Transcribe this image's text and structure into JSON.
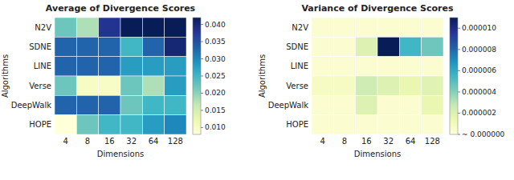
{
  "chart_data": [
    {
      "type": "heatmap",
      "title": "Average of Divergence Scores",
      "xlabel": "Dimensions",
      "ylabel": "Algorithms",
      "categories": [
        "4",
        "8",
        "16",
        "32",
        "64",
        "128"
      ],
      "y_categories": [
        "N2V",
        "SDNE",
        "LINE",
        "Verse",
        "DeepWalk",
        "HOPE"
      ],
      "values": [
        [
          0.022,
          0.018,
          0.038,
          0.042,
          0.042,
          0.042
        ],
        [
          0.033,
          0.033,
          0.033,
          0.025,
          0.033,
          0.04
        ],
        [
          0.033,
          0.033,
          0.033,
          0.028,
          0.028,
          0.028
        ],
        [
          0.022,
          0.01,
          0.01,
          0.022,
          0.018,
          0.028
        ],
        [
          0.033,
          0.033,
          0.033,
          0.022,
          0.025,
          0.025
        ],
        [
          0.008,
          0.022,
          0.025,
          0.025,
          0.028,
          0.03
        ]
      ],
      "color": "YlGnBu",
      "colorbar_range": [
        0.008,
        0.042
      ],
      "colorbar_ticks": [
        {
          "value": 0.01,
          "label": "0.010"
        },
        {
          "value": 0.015,
          "label": "0.015"
        },
        {
          "value": 0.02,
          "label": "0.020"
        },
        {
          "value": 0.025,
          "label": "0.025"
        },
        {
          "value": 0.03,
          "label": "0.030"
        },
        {
          "value": 0.035,
          "label": "0.035"
        },
        {
          "value": 0.04,
          "label": "0.040"
        }
      ]
    },
    {
      "type": "heatmap",
      "title": "Variance of Divergence Scores",
      "xlabel": "Dimensions",
      "ylabel": "Algorithms",
      "categories": [
        "4",
        "8",
        "16",
        "32",
        "64",
        "128"
      ],
      "y_categories": [
        "N2V",
        "SDNE",
        "LINE",
        "Verse",
        "DeepWalk",
        "HOPE"
      ],
      "values": [
        [
          3e-07,
          3e-07,
          3e-07,
          3e-07,
          3e-07,
          3e-07
        ],
        [
          3e-07,
          3e-07,
          2e-06,
          1.1e-05,
          5.5e-06,
          4.5e-06
        ],
        [
          3e-07,
          3e-07,
          3e-07,
          3e-07,
          3e-07,
          3e-07
        ],
        [
          8e-07,
          8e-07,
          2.5e-06,
          2e-06,
          1.5e-06,
          1.8e-06
        ],
        [
          3e-07,
          3e-07,
          2e-06,
          3e-07,
          3e-07,
          1.5e-06
        ],
        [
          3e-07,
          3e-07,
          3e-07,
          3e-07,
          3e-07,
          3e-07
        ]
      ],
      "color": "YlGnBu",
      "colorbar_range": [
        0.0,
        1.1e-05
      ],
      "colorbar_ticks": [
        {
          "value": 0.0,
          "label": "~ 0.000000"
        },
        {
          "value": 2e-06,
          "label": "0.000002"
        },
        {
          "value": 4e-06,
          "label": "0.000004"
        },
        {
          "value": 6e-06,
          "label": "0.000006"
        },
        {
          "value": 8e-06,
          "label": "0.000008"
        },
        {
          "value": 1e-05,
          "label": "0.000010"
        }
      ]
    }
  ]
}
